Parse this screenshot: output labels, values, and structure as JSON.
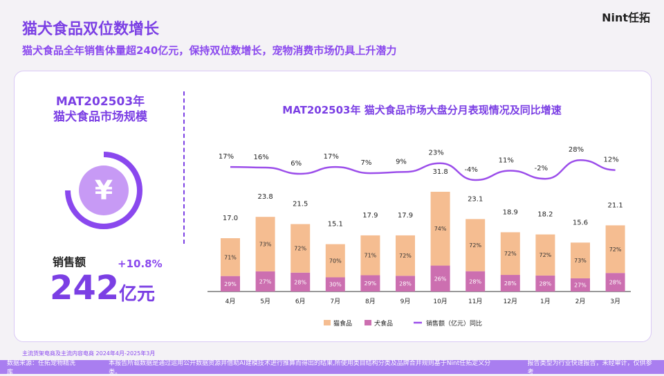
{
  "header": {
    "title": "猫犬食品双位数增长",
    "subtitle": "猫犬食品全年销售体量超240亿元，保持双位数增长，宠物消费市场仍具上升潜力",
    "logo": "Nint任拓"
  },
  "left": {
    "title_line1": "MAT202503年",
    "title_line2": "猫犬食品市场规模",
    "icon": "yuan-icon",
    "sales_label": "销售额",
    "growth": "+10.8%",
    "value": "242",
    "unit": "亿元"
  },
  "chart_data": {
    "type": "bar+line",
    "title": "MAT202503年 猫犬食品市场大盘分月表现情况及同比增速",
    "categories": [
      "4月",
      "5月",
      "6月",
      "7月",
      "8月",
      "9月",
      "10月",
      "11月",
      "12月",
      "1月",
      "2月",
      "3月"
    ],
    "totals": [
      17.0,
      23.8,
      21.5,
      15.1,
      17.9,
      17.9,
      31.8,
      23.1,
      18.9,
      18.2,
      15.6,
      21.1
    ],
    "series": [
      {
        "name": "猫食品",
        "color": "#f5bd91",
        "share": [
          71,
          73,
          72,
          70,
          71,
          72,
          74,
          72,
          72,
          72,
          73,
          72
        ]
      },
      {
        "name": "犬食品",
        "color": "#cc6fb0",
        "share": [
          29,
          27,
          28,
          30,
          29,
          28,
          26,
          28,
          28,
          28,
          27,
          28
        ]
      },
      {
        "name": "销售额（亿元）同比",
        "color": "#9b4dea",
        "values": [
          17,
          16,
          6,
          17,
          7,
          9,
          23,
          -4,
          11,
          -2,
          28,
          12
        ]
      }
    ],
    "legend_position": "bottom"
  },
  "footer": {
    "note": "主流货架电商及主流内容电商 2024年4月-2025年3月",
    "source": "数据来源：任拓宠物精洗库",
    "disclaimer": "本报告所载数据是通过运用公开数据资源并借助AI建模技术进行推算而得出的结果,所使用类目结构分类及品牌合并规则基于Nint任拓定义分类。",
    "type": "报告类型为行业快速报告，未经审计，仅供参考"
  }
}
